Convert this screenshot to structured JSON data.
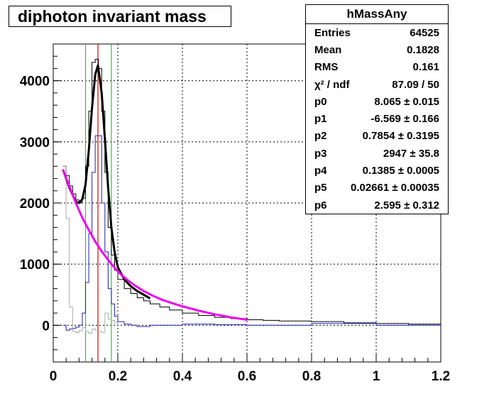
{
  "chart_data": {
    "type": "line",
    "title": "diphoton invariant mass",
    "xlim": [
      0,
      1.2
    ],
    "ylim": [
      -600,
      4600
    ],
    "x_ticks": [
      "0",
      "0.2",
      "0.4",
      "0.6",
      "0.8",
      "1",
      "1.2"
    ],
    "y_ticks": [
      "0",
      "1000",
      "2000",
      "3000",
      "4000"
    ],
    "x_tick_values": [
      0,
      0.2,
      0.4,
      0.6,
      0.8,
      1.0,
      1.2
    ],
    "y_tick_values": [
      0,
      1000,
      2000,
      3000,
      4000
    ],
    "grid": true,
    "vertical_lines": [
      {
        "x": 0.1,
        "color": "#22cc22"
      },
      {
        "x": 0.1385,
        "color": "#dd0000"
      },
      {
        "x": 0.18,
        "color": "#22cc22"
      }
    ],
    "series": [
      {
        "color": "#000000",
        "style": "step",
        "x": [
          0.03,
          0.04,
          0.05,
          0.06,
          0.07,
          0.08,
          0.09,
          0.1,
          0.11,
          0.12,
          0.13,
          0.14,
          0.15,
          0.16,
          0.17,
          0.18,
          0.19,
          0.2,
          0.22,
          0.24,
          0.26,
          0.28,
          0.3,
          0.33,
          0.36,
          0.4,
          0.45,
          0.5,
          0.55,
          0.6,
          0.65,
          0.7,
          0.8,
          0.9,
          1.0,
          1.1,
          1.2
        ],
        "y": [
          2600,
          2450,
          2280,
          2150,
          2050,
          2000,
          2080,
          2600,
          3500,
          4300,
          4350,
          4200,
          3500,
          2500,
          1600,
          1150,
          900,
          750,
          600,
          520,
          450,
          400,
          350,
          300,
          250,
          200,
          160,
          130,
          110,
          90,
          80,
          70,
          60,
          40,
          30,
          20,
          15
        ]
      },
      {
        "color": "#1f1fb4",
        "style": "step",
        "x": [
          0.03,
          0.04,
          0.05,
          0.06,
          0.07,
          0.08,
          0.09,
          0.1,
          0.11,
          0.12,
          0.13,
          0.14,
          0.15,
          0.16,
          0.17,
          0.18,
          0.19,
          0.2,
          0.22,
          0.24,
          0.26,
          0.3,
          0.4,
          0.5,
          0.6,
          0.8,
          1.0,
          1.2
        ],
        "y": [
          0,
          -80,
          -60,
          -50,
          -30,
          0,
          200,
          700,
          1500,
          2500,
          3100,
          3100,
          2000,
          1200,
          600,
          350,
          150,
          60,
          20,
          0,
          -20,
          0,
          20,
          10,
          0,
          30,
          0,
          10
        ]
      },
      {
        "color": "#aaaaaa",
        "style": "step",
        "x": [
          0.03,
          0.04,
          0.05,
          0.06,
          0.07,
          0.08,
          0.09,
          0.1,
          0.11,
          0.12,
          0.13,
          0.14,
          0.15,
          0.16,
          0.17,
          0.18,
          0.19,
          0.2
        ],
        "y": [
          2600,
          1750,
          300,
          -100,
          -120,
          -90,
          -40,
          -100,
          -130,
          -60,
          -80,
          -100,
          -120,
          200,
          100,
          80,
          40,
          0
        ]
      },
      {
        "color": "#000000",
        "style": "fit",
        "x": [
          0.03,
          0.05,
          0.07,
          0.08,
          0.09,
          0.1,
          0.11,
          0.12,
          0.13,
          0.1385,
          0.15,
          0.16,
          0.17,
          0.18,
          0.19,
          0.2,
          0.22,
          0.24,
          0.26,
          0.28,
          0.3
        ],
        "y": [
          2550,
          2250,
          2020,
          2000,
          2060,
          2300,
          2850,
          3550,
          4100,
          4250,
          3800,
          3050,
          2250,
          1600,
          1200,
          950,
          750,
          640,
          560,
          500,
          440
        ]
      },
      {
        "color": "#ee00ee",
        "style": "fit",
        "x": [
          0.03,
          0.05,
          0.07,
          0.09,
          0.11,
          0.13,
          0.15,
          0.17,
          0.19,
          0.21,
          0.23,
          0.25,
          0.28,
          0.31,
          0.34,
          0.37,
          0.4,
          0.45,
          0.5,
          0.55,
          0.6
        ],
        "y": [
          2550,
          2270,
          2000,
          1760,
          1560,
          1370,
          1210,
          1070,
          940,
          830,
          740,
          660,
          560,
          480,
          410,
          360,
          310,
          240,
          180,
          130,
          90
        ]
      }
    ]
  },
  "stats": {
    "name": "hMassAny",
    "rows": [
      {
        "label": "Entries",
        "value": "64525"
      },
      {
        "label": "Mean",
        "value": "0.1828"
      },
      {
        "label": "RMS",
        "value": "0.161"
      },
      {
        "label": "χ² / ndf",
        "value": "87.09 / 50"
      },
      {
        "label": "p0",
        "value": "8.065 ± 0.015"
      },
      {
        "label": "p1",
        "value": "-6.569 ± 0.166"
      },
      {
        "label": "p2",
        "value": "0.7854 ± 0.3195"
      },
      {
        "label": "p3",
        "value": "2947 ± 35.8"
      },
      {
        "label": "p4",
        "value": "0.1385 ± 0.0005"
      },
      {
        "label": "p5",
        "value": "0.02661 ± 0.00035"
      },
      {
        "label": "p6",
        "value": "2.595 ± 0.312"
      }
    ]
  }
}
